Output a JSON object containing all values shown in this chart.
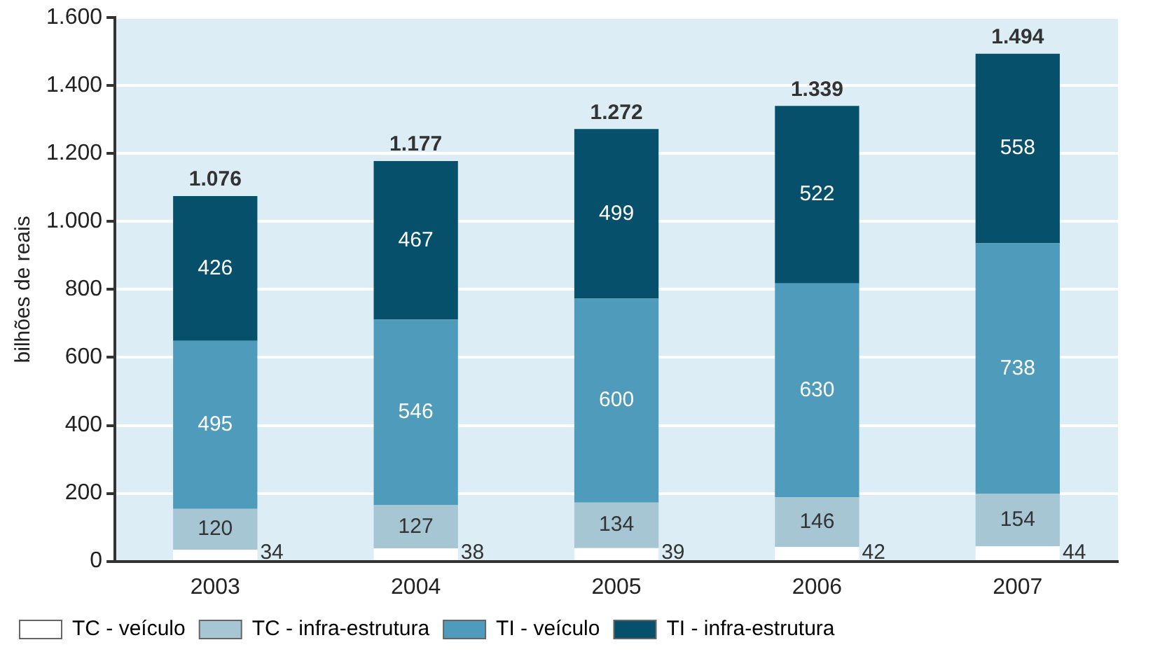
{
  "chart_data": {
    "type": "bar",
    "stacked": true,
    "ylabel": "bilhões de reais",
    "categories": [
      "2003",
      "2004",
      "2005",
      "2006",
      "2007"
    ],
    "series": [
      {
        "name": "TC - veículo",
        "color": "#ffffff",
        "values": [
          34,
          38,
          39,
          42,
          44
        ]
      },
      {
        "name": "TC - infra-estrutura",
        "color": "#a6c6d4",
        "values": [
          120,
          127,
          134,
          146,
          154
        ]
      },
      {
        "name": "TI - veículo",
        "color": "#4f9bbb",
        "values": [
          495,
          546,
          600,
          630,
          738
        ]
      },
      {
        "name": "TI - infra-estrutura",
        "color": "#07506c",
        "values": [
          426,
          467,
          499,
          522,
          558
        ]
      }
    ],
    "totals": [
      "1.076",
      "1.177",
      "1.272",
      "1.339",
      "1.494"
    ],
    "data_labels": true,
    "ylim": [
      0,
      1600
    ],
    "yticks": [
      0,
      200,
      400,
      600,
      800,
      {
        "value": 1000,
        "label": "1.000"
      },
      {
        "value": 1200,
        "label": "1.200"
      },
      {
        "value": 1400,
        "label": "1.400"
      },
      {
        "value": 1600,
        "label": "1.600"
      }
    ],
    "grid": "y",
    "legend": "bottom left"
  }
}
